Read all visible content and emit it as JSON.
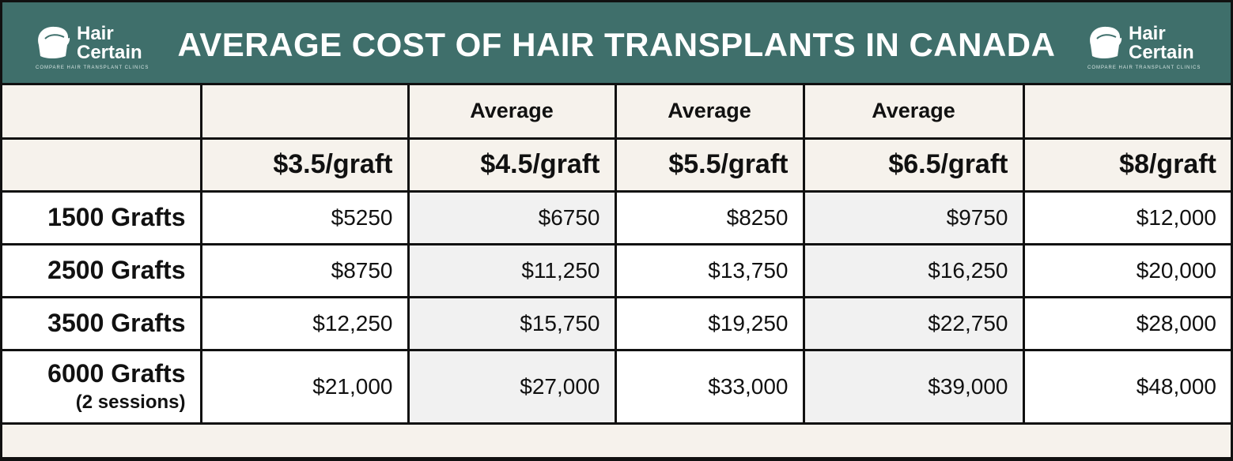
{
  "header": {
    "title": "AVERAGE COST OF HAIR TRANSPLANTS IN CANADA",
    "logo": {
      "line1": "Hair",
      "line2": "Certain",
      "tagline": "COMPARE HAIR TRANSPLANT CLINICS"
    }
  },
  "table": {
    "average_labels": [
      "",
      "",
      "Average",
      "Average",
      "Average",
      ""
    ],
    "price_headers": [
      "",
      "$3.5/graft",
      "$4.5/graft",
      "$5.5/graft",
      "$6.5/graft",
      "$8/graft"
    ],
    "rows": [
      {
        "label": "1500 Grafts",
        "sub": "",
        "values": [
          "$5250",
          "$6750",
          "$8250",
          "$9750",
          "$12,000"
        ]
      },
      {
        "label": "2500 Grafts",
        "sub": "",
        "values": [
          "$8750",
          "$11,250",
          "$13,750",
          "$16,250",
          "$20,000"
        ]
      },
      {
        "label": "3500 Grafts",
        "sub": "",
        "values": [
          "$12,250",
          "$15,750",
          "$19,250",
          "$22,750",
          "$28,000"
        ]
      },
      {
        "label": "6000 Grafts",
        "sub": "(2 sessions)",
        "values": [
          "$21,000",
          "$27,000",
          "$33,000",
          "$39,000",
          "$48,000"
        ]
      }
    ]
  },
  "colors": {
    "header_bg": "#3f6f6b",
    "cream": "#f6f2ec",
    "grey_cell": "#f1f1f1",
    "border": "#111111"
  }
}
